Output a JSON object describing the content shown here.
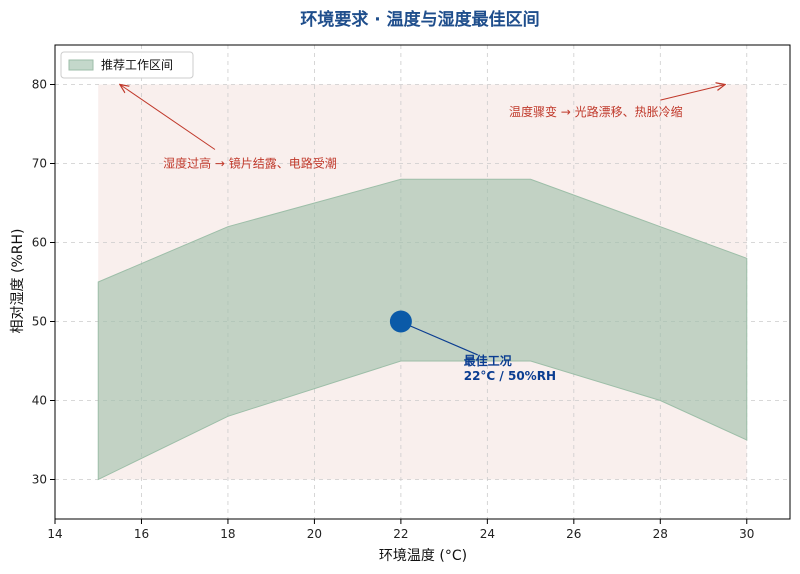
{
  "chart_data": {
    "type": "area",
    "title": "环境要求 · 温度与湿度最佳区间",
    "xlabel": "环境温度 (°C)",
    "ylabel": "相对湿度 (%RH)",
    "xlim": [
      14,
      31
    ],
    "ylim": [
      25,
      85
    ],
    "xticks": [
      14,
      16,
      18,
      20,
      22,
      24,
      26,
      28,
      30
    ],
    "yticks": [
      30,
      40,
      50,
      60,
      70,
      80
    ],
    "grid": true,
    "legend": {
      "placement": "top-left",
      "entries": [
        "推荐工作区间"
      ]
    },
    "background_region": {
      "x": [
        15,
        30
      ],
      "y": [
        30,
        80
      ],
      "color": "#f8ecea"
    },
    "band": {
      "name": "推荐工作区间",
      "x": [
        15,
        18,
        22,
        25,
        28,
        30
      ],
      "lower": [
        30,
        38,
        45,
        45,
        40,
        35
      ],
      "upper": [
        55,
        62,
        68,
        68,
        62,
        58
      ],
      "color": "#9dbea8"
    },
    "optimal_point": {
      "x": 22,
      "y": 50,
      "color": "#0b5aa8"
    },
    "annotations": [
      {
        "id": "high",
        "text": "湿度过高 → 镜片结露、电路受潮",
        "text_x": 16.5,
        "text_y": 70,
        "arrow_x": 15.5,
        "arrow_y": 80,
        "color": "#c0392b"
      },
      {
        "id": "change",
        "text": "温度骤变 → 光路漂移、热胀冷缩",
        "text_x": 24.5,
        "text_y": 76.5,
        "arrow_x": 29.5,
        "arrow_y": 80,
        "color": "#c0392b"
      },
      {
        "id": "best",
        "line1": "最佳工况",
        "line2": "22°C / 50%RH",
        "text_x": 23.5,
        "text_y": 44.5,
        "arrow_x": 22,
        "arrow_y": 50,
        "color": "#0b3d91"
      }
    ]
  }
}
